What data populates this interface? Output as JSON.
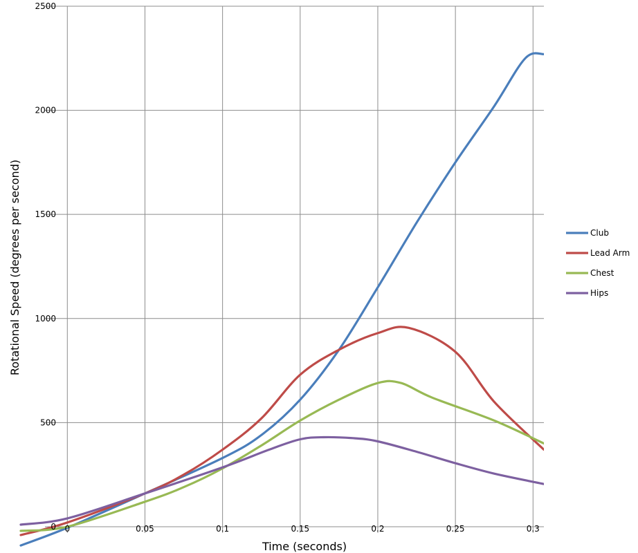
{
  "chart_data": {
    "type": "line",
    "title": "",
    "xlabel": "Time (seconds)",
    "ylabel": "Rotational Speed (degrees per second)",
    "xlim": [
      -0.03,
      0.307
    ],
    "ylim": [
      -30,
      2500
    ],
    "x_ticks": [
      0,
      0.05,
      0.1,
      0.15,
      0.2,
      0.25,
      0.3
    ],
    "x_tick_labels": [
      "0",
      "0.05",
      "0.1",
      "0.15",
      "0.2",
      "0.25",
      "0.3"
    ],
    "y_ticks": [
      0,
      500,
      1000,
      1500,
      2000,
      2500
    ],
    "y_tick_labels": [
      "0",
      "500",
      "1000",
      "1500",
      "2000",
      "2500"
    ],
    "grid": true,
    "legend_position": "right",
    "series": [
      {
        "name": "Club",
        "color": "#4a7ebb",
        "points": [
          [
            -0.03,
            -90
          ],
          [
            0,
            -5
          ],
          [
            0.05,
            160
          ],
          [
            0.1,
            330
          ],
          [
            0.125,
            440
          ],
          [
            0.15,
            610
          ],
          [
            0.175,
            850
          ],
          [
            0.2,
            1150
          ],
          [
            0.225,
            1460
          ],
          [
            0.25,
            1750
          ],
          [
            0.275,
            2020
          ],
          [
            0.295,
            2250
          ],
          [
            0.307,
            2270
          ]
        ]
      },
      {
        "name": "Lead Arm",
        "color": "#be4b48",
        "points": [
          [
            -0.03,
            -40
          ],
          [
            0,
            20
          ],
          [
            0.05,
            160
          ],
          [
            0.075,
            250
          ],
          [
            0.1,
            370
          ],
          [
            0.125,
            520
          ],
          [
            0.15,
            730
          ],
          [
            0.175,
            850
          ],
          [
            0.2,
            930
          ],
          [
            0.22,
            955
          ],
          [
            0.25,
            840
          ],
          [
            0.275,
            600
          ],
          [
            0.307,
            370
          ]
        ]
      },
      {
        "name": "Chest",
        "color": "#98b954",
        "points": [
          [
            -0.03,
            -20
          ],
          [
            0,
            0
          ],
          [
            0.05,
            120
          ],
          [
            0.075,
            190
          ],
          [
            0.1,
            280
          ],
          [
            0.125,
            390
          ],
          [
            0.15,
            510
          ],
          [
            0.175,
            610
          ],
          [
            0.2,
            690
          ],
          [
            0.215,
            690
          ],
          [
            0.235,
            620
          ],
          [
            0.275,
            510
          ],
          [
            0.307,
            400
          ]
        ]
      },
      {
        "name": "Hips",
        "color": "#7d60a0",
        "points": [
          [
            -0.03,
            10
          ],
          [
            0,
            40
          ],
          [
            0.05,
            160
          ],
          [
            0.1,
            285
          ],
          [
            0.13,
            370
          ],
          [
            0.15,
            420
          ],
          [
            0.165,
            430
          ],
          [
            0.185,
            425
          ],
          [
            0.2,
            410
          ],
          [
            0.225,
            360
          ],
          [
            0.25,
            305
          ],
          [
            0.275,
            255
          ],
          [
            0.307,
            205
          ]
        ]
      }
    ]
  }
}
